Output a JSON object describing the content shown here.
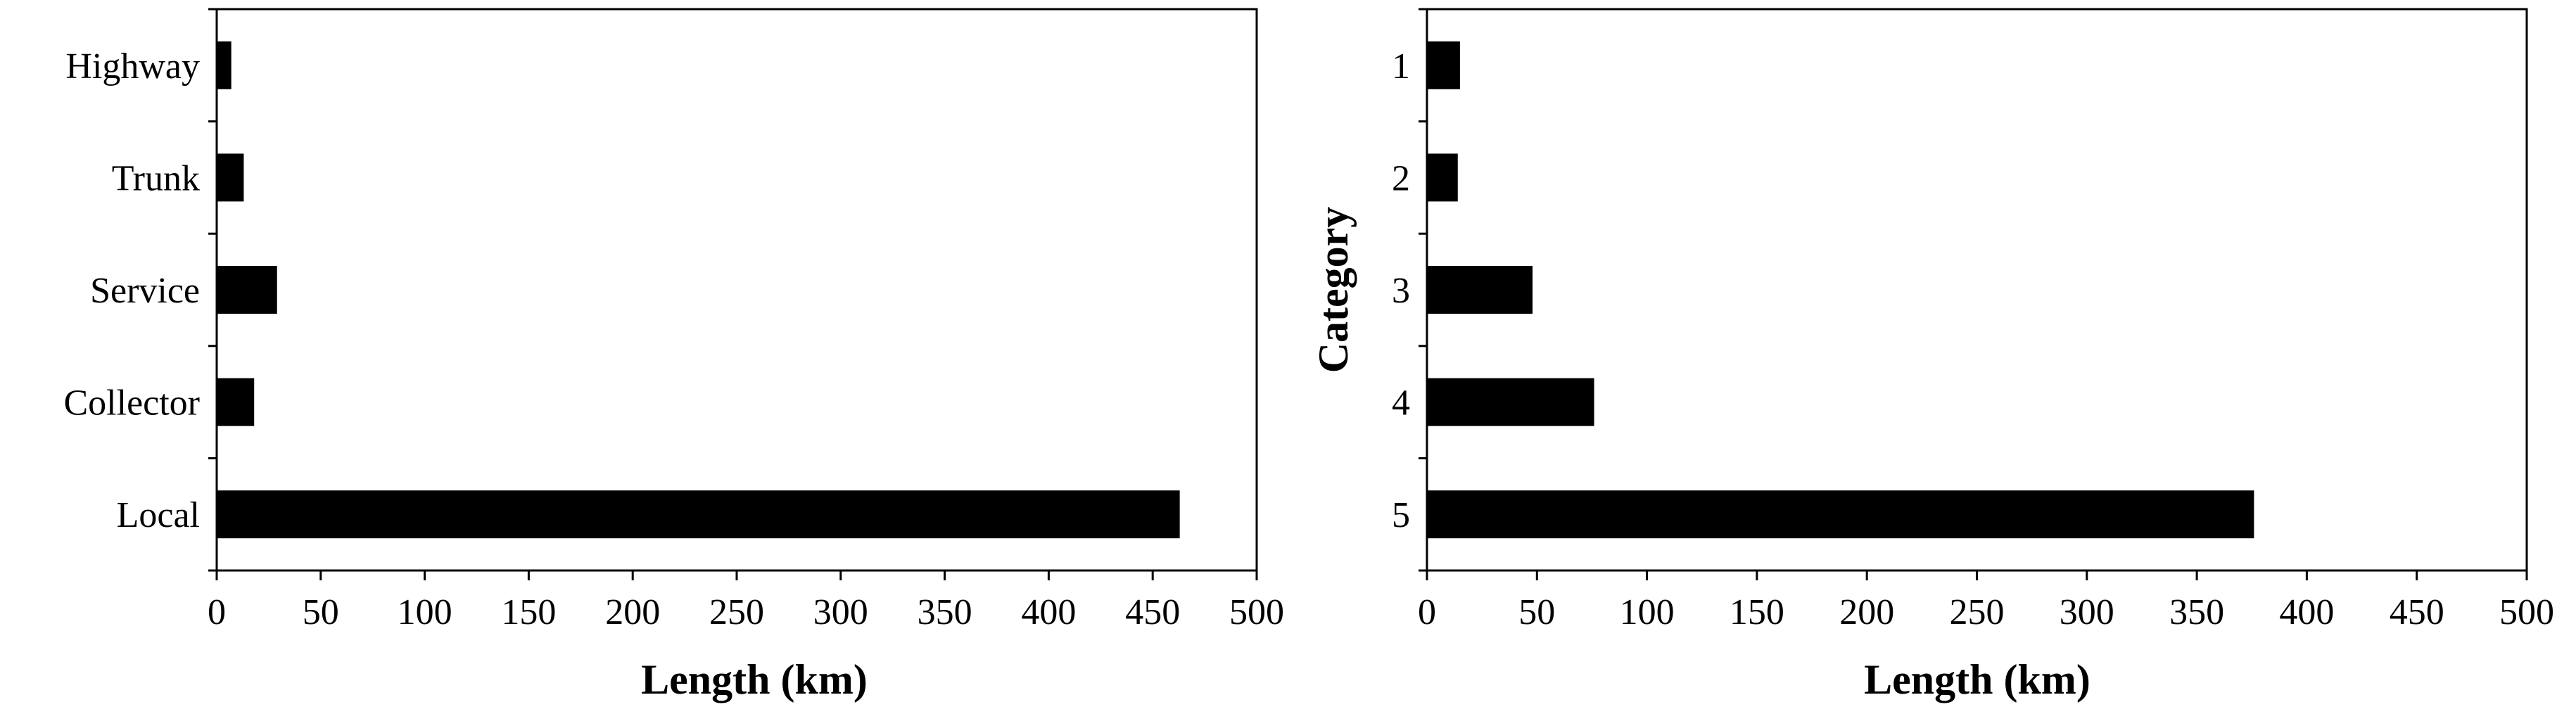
{
  "chart_data": [
    {
      "type": "bar",
      "orientation": "horizontal",
      "title": "",
      "categories": [
        "Highway",
        "Trunk",
        "Service",
        "Collector",
        "Local"
      ],
      "values": [
        7,
        13,
        29,
        18,
        463
      ],
      "xlabel": "Length (km)",
      "ylabel": "",
      "xlim": [
        0,
        500
      ],
      "xticks": [
        "0",
        "50",
        "100",
        "150",
        "200",
        "250",
        "300",
        "350",
        "400",
        "450",
        "500"
      ],
      "grid": false,
      "bar_color": "#000000"
    },
    {
      "type": "bar",
      "orientation": "horizontal",
      "title": "",
      "categories": [
        "1",
        "2",
        "3",
        "4",
        "5"
      ],
      "values": [
        15,
        14,
        48,
        76,
        376
      ],
      "xlabel": "Length (km)",
      "ylabel": "Category",
      "xlim": [
        0,
        500
      ],
      "xticks": [
        "0",
        "50",
        "100",
        "150",
        "200",
        "250",
        "300",
        "350",
        "400",
        "450",
        "500"
      ],
      "grid": false,
      "bar_color": "#000000"
    }
  ]
}
